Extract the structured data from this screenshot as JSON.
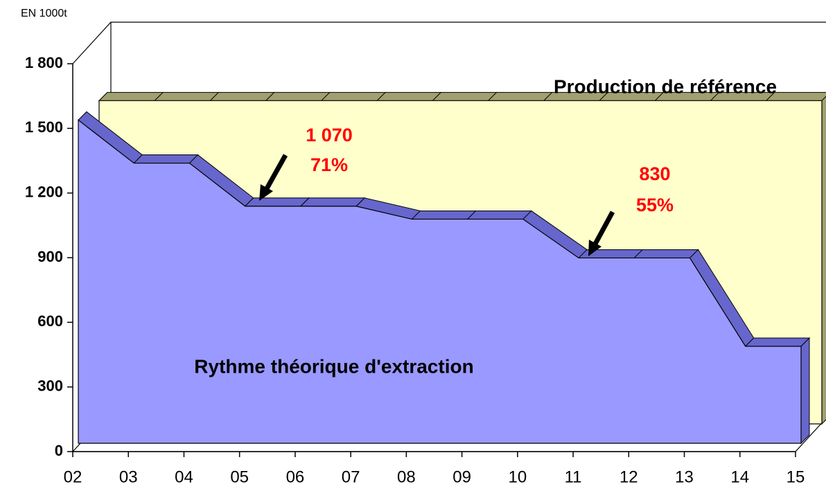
{
  "chart_data": {
    "type": "area3d",
    "unit_label": "EN 1000t",
    "categories": [
      "02",
      "03",
      "04",
      "05",
      "06",
      "07",
      "08",
      "09",
      "10",
      "11",
      "12",
      "13",
      "14",
      "15"
    ],
    "series": [
      {
        "name": "Production de référence",
        "color": "#ffffcc",
        "values": [
          1500,
          1500,
          1500,
          1500,
          1500,
          1500,
          1500,
          1500,
          1500,
          1500,
          1500,
          1500,
          1500,
          1500
        ]
      },
      {
        "name": "Rythme théorique d'extraction",
        "color": "#9999ff",
        "values": [
          1500,
          1300,
          1300,
          1100,
          1100,
          1100,
          1040,
          1040,
          1040,
          860,
          860,
          860,
          450,
          450
        ]
      }
    ],
    "annotations": [
      {
        "value_text": "1 070",
        "percent": "71%"
      },
      {
        "value_text": "830",
        "percent": "55%"
      }
    ],
    "ylim": [
      0,
      1800
    ],
    "yticks": [
      0,
      300,
      600,
      900,
      {
        "value": 1200,
        "label": "1 200"
      },
      {
        "value": 1500,
        "label": "1 500"
      },
      {
        "value": 1800,
        "label": "1 800"
      }
    ]
  }
}
